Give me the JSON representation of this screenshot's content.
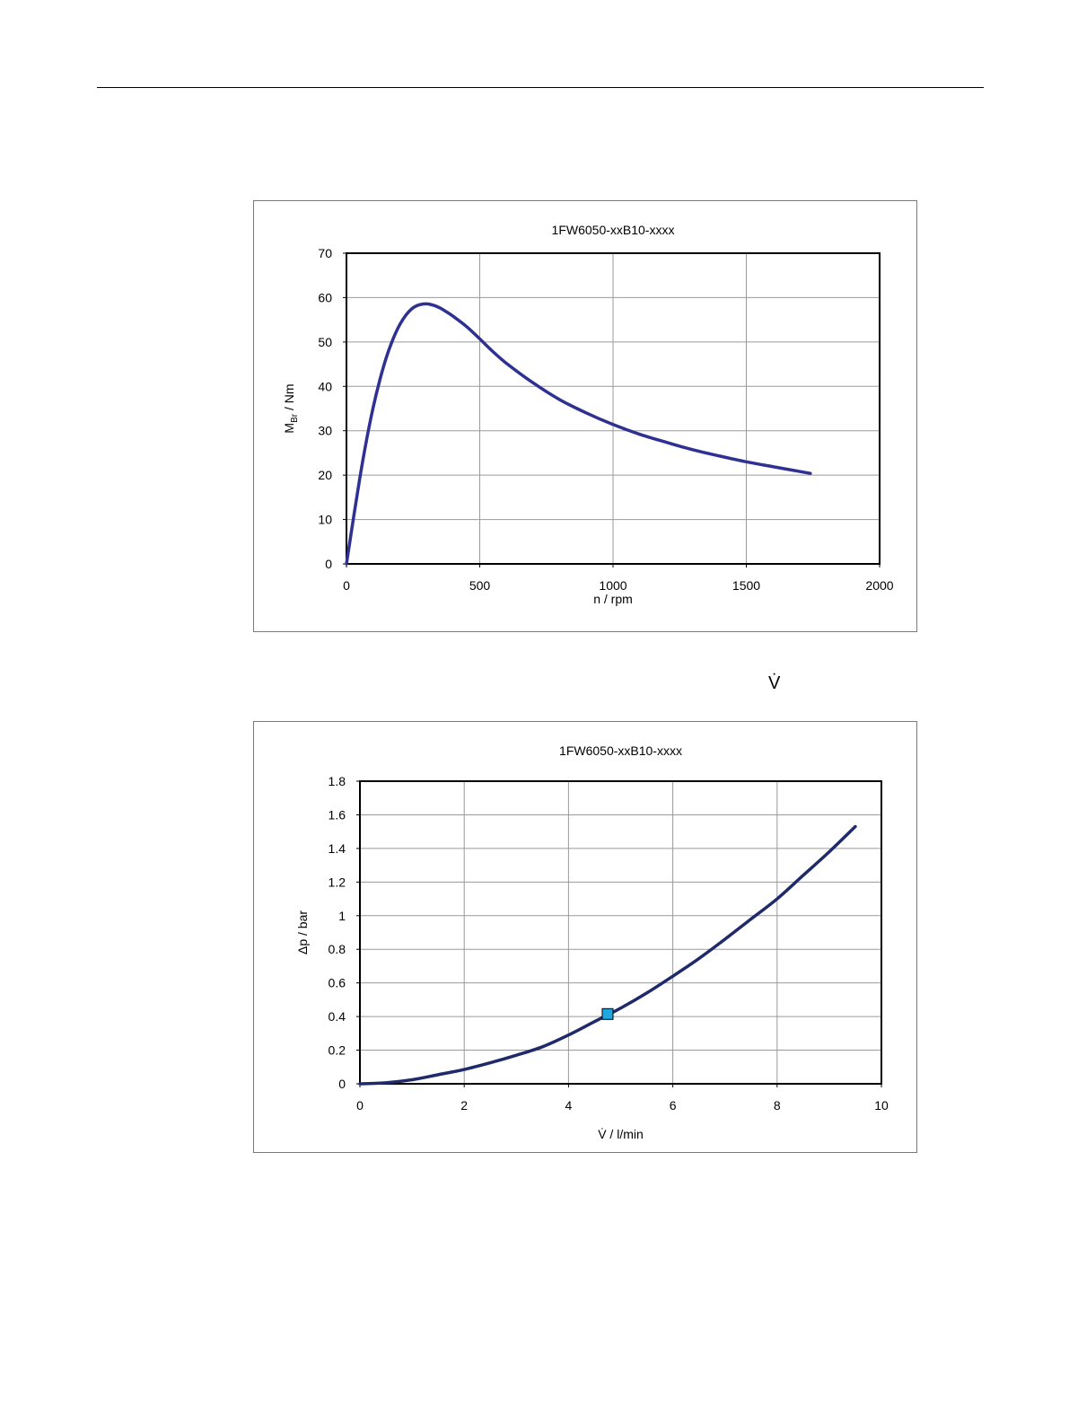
{
  "page": {
    "vdot_symbol": "V̇"
  },
  "chart_data": [
    {
      "type": "line",
      "title": "1FW6050-xxB10-xxxx",
      "xlabel": "n / rpm",
      "ylabel_main": "M",
      "ylabel_sub": "Br",
      "ylabel_rest": " / Nm",
      "xlim": [
        0,
        2000
      ],
      "ylim": [
        0,
        70
      ],
      "xticks": [
        0,
        500,
        1000,
        1500,
        2000
      ],
      "xtick_labels": [
        "0",
        "500",
        "1000",
        "1500",
        "2000"
      ],
      "yticks": [
        0,
        10,
        20,
        30,
        40,
        50,
        60,
        70
      ],
      "ytick_labels": [
        "0",
        "10",
        "20",
        "30",
        "40",
        "50",
        "60",
        "70"
      ],
      "grid": true,
      "line_color": "#2e3192",
      "series": [
        {
          "x": [
            0,
            25,
            50,
            75,
            100,
            125,
            150,
            175,
            200,
            225,
            250,
            275,
            300,
            325,
            350,
            375,
            400,
            450,
            500,
            550,
            600,
            700,
            800,
            900,
            1000,
            1100,
            1200,
            1300,
            1400,
            1500,
            1600,
            1740
          ],
          "y": [
            0,
            9.8,
            19.3,
            27.8,
            35.2,
            41.4,
            46.6,
            50.7,
            53.9,
            56.2,
            57.7,
            58.4,
            58.6,
            58.3,
            57.7,
            56.8,
            55.8,
            53.5,
            50.7,
            47.8,
            45.2,
            40.8,
            37.0,
            34.0,
            31.4,
            29.2,
            27.4,
            25.7,
            24.3,
            23.0,
            21.9,
            20.4
          ]
        }
      ]
    },
    {
      "type": "line",
      "title": "1FW6050-xxB10-xxxx",
      "xlabel": "V̇ / l/min",
      "ylabel": "Δp / bar",
      "xlim": [
        0,
        10
      ],
      "ylim": [
        0,
        1.8
      ],
      "xticks": [
        0,
        2,
        4,
        6,
        8,
        10
      ],
      "xtick_labels": [
        "0",
        "2",
        "4",
        "6",
        "8",
        "10"
      ],
      "yticks": [
        0,
        0.2,
        0.4,
        0.6,
        0.8,
        1.0,
        1.2,
        1.4,
        1.6,
        1.8
      ],
      "ytick_labels": [
        "0",
        "0.2",
        "0.4",
        "0.6",
        "0.8",
        "1",
        "1.2",
        "1.4",
        "1.6",
        "1.8"
      ],
      "grid": true,
      "line_color": "#1f2a6b",
      "marker_color": "#1ea7e0",
      "series": [
        {
          "x": [
            0,
            0.5,
            1,
            1.5,
            2,
            2.5,
            3,
            3.5,
            4,
            4.5,
            5,
            5.5,
            6,
            6.5,
            7,
            7.5,
            8,
            8.5,
            9,
            9.5
          ],
          "y": [
            0,
            0.006,
            0.024,
            0.054,
            0.085,
            0.125,
            0.17,
            0.22,
            0.29,
            0.37,
            0.45,
            0.54,
            0.64,
            0.745,
            0.86,
            0.98,
            1.1,
            1.24,
            1.38,
            1.53
          ]
        }
      ],
      "marker_point": {
        "x": 4.75,
        "y": 0.415
      }
    }
  ]
}
